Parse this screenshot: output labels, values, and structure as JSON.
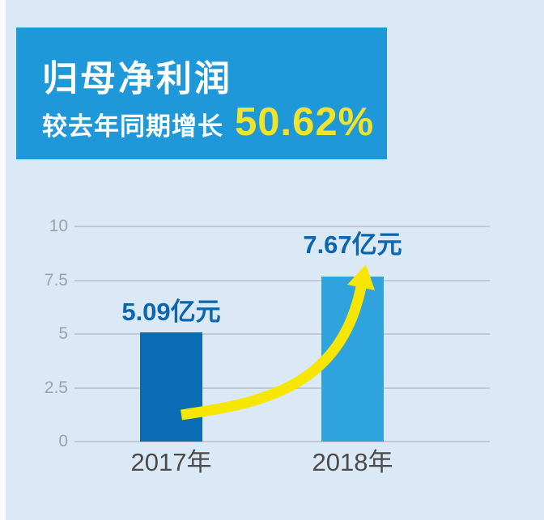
{
  "page": {
    "background_color": "#dbe9f6"
  },
  "header": {
    "title": "归母净利润",
    "subtitle_prefix": "较去年同期增长",
    "growth_value": "50.62%",
    "card_color": "#1e98d9",
    "accent_color": "#f0e32b"
  },
  "chart_data": {
    "type": "bar",
    "title": "归母净利润",
    "categories": [
      "2017年",
      "2018年"
    ],
    "values": [
      5.09,
      7.67
    ],
    "unit": "亿元",
    "bar_labels": [
      "5.09亿元",
      "7.67亿元"
    ],
    "bar_colors": [
      "#0a6cb5",
      "#2fa3de"
    ],
    "value_label_color": "#0c66af",
    "ylim": [
      0,
      10
    ],
    "yticks": [
      0,
      2.5,
      5,
      7.5,
      10
    ],
    "grid": true,
    "legend": false,
    "xlabel": "",
    "ylabel": "",
    "annotations": [
      {
        "type": "arrow",
        "color": "#f7e600",
        "from_category": "2017年",
        "to_category": "2018年",
        "meaning": "growth from 5.09亿元 to 7.67亿元"
      }
    ]
  }
}
